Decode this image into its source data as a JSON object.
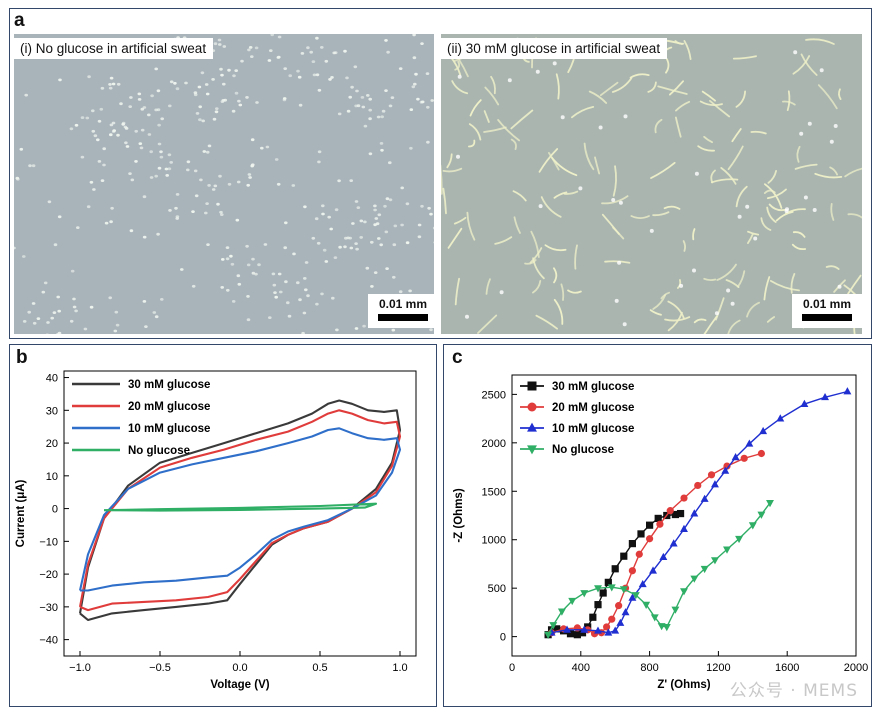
{
  "panel_a": {
    "letter": "a",
    "left_caption": "(i) No glucose in artificial sweat",
    "right_caption": "(ii) 30 mM glucose in artificial sweat",
    "scale_left": "0.01 mm",
    "scale_right": "0.01 mm",
    "colors": {
      "bg_left": "#a9b3ba",
      "bg_right": "#aab5b0",
      "dots": "#eef4ee",
      "fibers": "#eef0c8"
    }
  },
  "watermark": "公众号 · MEMS",
  "chart_data": [
    {
      "panel": "b",
      "type": "line",
      "xlabel": "Voltage (V)",
      "ylabel": "Current (μA)",
      "xlim": [
        -1.1,
        1.1
      ],
      "ylim": [
        -45,
        42
      ],
      "xticks": [
        -1.0,
        -0.5,
        0.0,
        0.5,
        1.0
      ],
      "xtick_labels": [
        "−1.0",
        "−0.5",
        "0.0",
        "0.5",
        "1.0"
      ],
      "yticks": [
        -40,
        -30,
        -20,
        -10,
        0,
        10,
        20,
        30,
        40
      ],
      "ytick_labels": [
        "−40",
        "−30",
        "−20",
        "−10",
        "0",
        "10",
        "20",
        "30",
        "40"
      ],
      "legend_position": "top-left",
      "series": [
        {
          "name": "30 mM glucose",
          "color": "#3a3a3a",
          "x": [
            -1.0,
            -0.95,
            -0.85,
            -0.7,
            -0.5,
            -0.3,
            -0.1,
            0.1,
            0.3,
            0.45,
            0.55,
            0.62,
            0.7,
            0.8,
            0.9,
            0.98,
            1.0,
            0.95,
            0.85,
            0.7,
            0.55,
            0.4,
            0.3,
            0.2,
            0.1,
            0.0,
            -0.08,
            -0.2,
            -0.4,
            -0.6,
            -0.8,
            -0.95,
            -1.0
          ],
          "y": [
            -32,
            -18,
            -3,
            7,
            14,
            17,
            20,
            23,
            26,
            29,
            32,
            33,
            32,
            30,
            29.5,
            30,
            24,
            14,
            6,
            0,
            -4,
            -6,
            -8,
            -11,
            -17,
            -23,
            -28,
            -29,
            -30,
            -31,
            -32,
            -34,
            -32
          ]
        },
        {
          "name": "20 mM glucose",
          "color": "#e03c3c",
          "x": [
            -1.0,
            -0.95,
            -0.85,
            -0.7,
            -0.5,
            -0.3,
            -0.1,
            0.1,
            0.3,
            0.45,
            0.55,
            0.62,
            0.7,
            0.8,
            0.9,
            0.98,
            1.0,
            0.95,
            0.85,
            0.7,
            0.55,
            0.4,
            0.3,
            0.2,
            0.1,
            0.0,
            -0.08,
            -0.2,
            -0.4,
            -0.6,
            -0.8,
            -0.95,
            -1.0
          ],
          "y": [
            -30,
            -17,
            -3,
            6,
            12.5,
            15.5,
            18,
            21,
            23.5,
            26.5,
            29,
            30,
            29,
            27,
            26,
            26.5,
            22,
            13,
            5,
            0,
            -4,
            -6,
            -8,
            -10.5,
            -16,
            -21.5,
            -25.5,
            -27,
            -28,
            -28.5,
            -29,
            -31,
            -30
          ]
        },
        {
          "name": "10 mM glucose",
          "color": "#2f6fca",
          "x": [
            -1.0,
            -0.95,
            -0.85,
            -0.7,
            -0.5,
            -0.3,
            -0.1,
            0.1,
            0.3,
            0.45,
            0.55,
            0.62,
            0.7,
            0.8,
            0.9,
            0.98,
            1.0,
            0.95,
            0.85,
            0.7,
            0.55,
            0.4,
            0.3,
            0.2,
            0.1,
            0.0,
            -0.08,
            -0.2,
            -0.4,
            -0.6,
            -0.8,
            -0.95,
            -1.0
          ],
          "y": [
            -25,
            -14,
            -2,
            6,
            11,
            13.5,
            15.5,
            17.5,
            20,
            22,
            24,
            24.5,
            23,
            21.5,
            21,
            21.5,
            18,
            11,
            4,
            0,
            -3.5,
            -5.5,
            -7,
            -9.5,
            -14,
            -18,
            -20.5,
            -21,
            -22,
            -22.5,
            -23.5,
            -25,
            -25
          ]
        },
        {
          "name": "No glucose",
          "color": "#2fae66",
          "x": [
            -0.85,
            -0.5,
            0.0,
            0.5,
            0.85,
            0.78,
            0.5,
            0.0,
            -0.5,
            -0.85
          ],
          "y": [
            -0.5,
            -0.2,
            0.2,
            0.8,
            1.5,
            0.3,
            0.0,
            -0.4,
            -0.6,
            -0.5
          ]
        }
      ]
    },
    {
      "panel": "c",
      "type": "line",
      "xlabel": "Z' (Ohms)",
      "ylabel": "-Z (Ohms)",
      "xlim": [
        0,
        2000
      ],
      "ylim": [
        -200,
        2700
      ],
      "xticks": [
        0,
        400,
        800,
        1200,
        1600,
        2000
      ],
      "xtick_labels": [
        "0",
        "400",
        "800",
        "1200",
        "1600",
        "2000"
      ],
      "yticks": [
        0,
        500,
        1000,
        1500,
        2000,
        2500
      ],
      "ytick_labels": [
        "0",
        "500",
        "1000",
        "1500",
        "2000",
        "2500"
      ],
      "legend_position": "top-left",
      "series": [
        {
          "name": "30 mM glucose",
          "color": "#111111",
          "marker": "square",
          "x": [
            210,
            230,
            260,
            300,
            340,
            380,
            410,
            440,
            470,
            500,
            530,
            560,
            600,
            650,
            700,
            750,
            800,
            850,
            900,
            950,
            980
          ],
          "y": [
            20,
            70,
            80,
            60,
            30,
            20,
            40,
            100,
            200,
            330,
            450,
            560,
            700,
            830,
            960,
            1060,
            1150,
            1220,
            1250,
            1260,
            1270
          ]
        },
        {
          "name": "20 mM glucose",
          "color": "#e03c3c",
          "marker": "circle",
          "x": [
            230,
            300,
            380,
            440,
            480,
            520,
            550,
            580,
            620,
            660,
            700,
            740,
            800,
            860,
            920,
            1000,
            1080,
            1160,
            1250,
            1350,
            1450
          ],
          "y": [
            40,
            80,
            90,
            70,
            30,
            40,
            100,
            180,
            320,
            500,
            680,
            850,
            1010,
            1160,
            1300,
            1430,
            1560,
            1670,
            1760,
            1840,
            1890
          ]
        },
        {
          "name": "10 mM glucose",
          "color": "#1f2fd0",
          "marker": "triangle-up",
          "x": [
            230,
            320,
            420,
            500,
            560,
            600,
            630,
            660,
            700,
            760,
            820,
            880,
            940,
            1000,
            1060,
            1120,
            1180,
            1240,
            1300,
            1380,
            1460,
            1560,
            1700,
            1820,
            1950
          ],
          "y": [
            40,
            70,
            70,
            60,
            40,
            60,
            140,
            250,
            400,
            540,
            680,
            820,
            960,
            1110,
            1270,
            1420,
            1570,
            1710,
            1850,
            1990,
            2120,
            2250,
            2400,
            2470,
            2530
          ]
        },
        {
          "name": "No glucose",
          "color": "#2fae66",
          "marker": "triangle-down",
          "x": [
            210,
            240,
            290,
            350,
            420,
            500,
            580,
            650,
            720,
            780,
            830,
            870,
            900,
            950,
            1000,
            1060,
            1120,
            1180,
            1250,
            1320,
            1400,
            1450,
            1500
          ],
          "y": [
            20,
            120,
            260,
            370,
            450,
            500,
            510,
            490,
            430,
            330,
            200,
            110,
            100,
            280,
            470,
            600,
            700,
            790,
            900,
            1010,
            1150,
            1260,
            1380
          ]
        }
      ]
    }
  ]
}
